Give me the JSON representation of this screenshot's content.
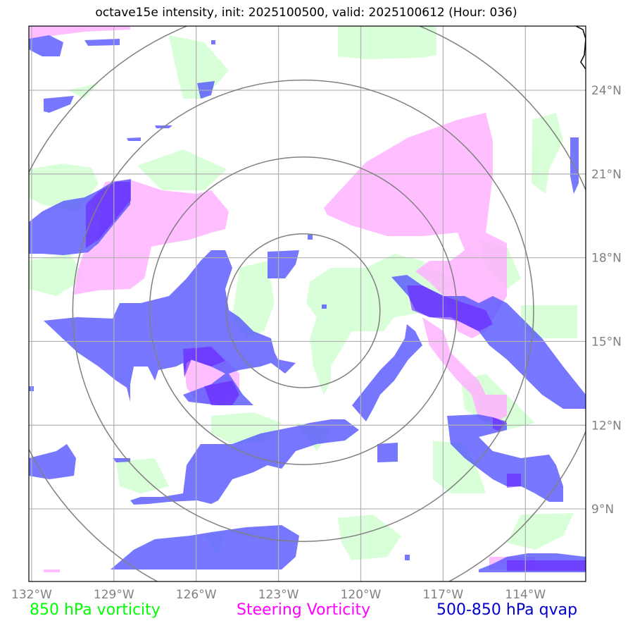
{
  "title": "octave15e intensity, init: 2025100500, valid: 2025100612 (Hour: 036)",
  "map": {
    "lon_range": [
      -132.1,
      -111.8
    ],
    "lat_range": [
      6.4,
      26.3
    ],
    "x_ticks": [
      {
        "value": -132,
        "label": "132°W"
      },
      {
        "value": -129,
        "label": "129°W"
      },
      {
        "value": -126,
        "label": "126°W"
      },
      {
        "value": -123,
        "label": "123°W"
      },
      {
        "value": -120,
        "label": "120°W"
      },
      {
        "value": -117,
        "label": "117°W"
      },
      {
        "value": -114,
        "label": "114°W"
      }
    ],
    "y_ticks": [
      {
        "value": 24,
        "label": "24°N"
      },
      {
        "value": 21,
        "label": "21°N"
      },
      {
        "value": 18,
        "label": "18°N"
      },
      {
        "value": 15,
        "label": "15°N"
      },
      {
        "value": 12,
        "label": "12°N"
      },
      {
        "value": 9,
        "label": "9°N"
      }
    ],
    "storm_center": {
      "lon": -122.1,
      "lat": 16.1
    },
    "range_rings_deg": [
      2.8,
      5.6,
      8.4,
      11.2
    ],
    "grid": true
  },
  "legend": [
    {
      "label": "850 hPa vorticity",
      "color": "#00ff00"
    },
    {
      "label": "Steering Vorticity",
      "color": "#ff00ff"
    },
    {
      "label": "500-850 hPa qvap",
      "color": "#0000cc"
    }
  ],
  "colors": {
    "vorticity_fill": "#ccffcc",
    "steering_fill": "#ffb3ff",
    "qvap_fill": "#5555ff",
    "grid": "#b0b0b0",
    "rings": "#808080"
  }
}
